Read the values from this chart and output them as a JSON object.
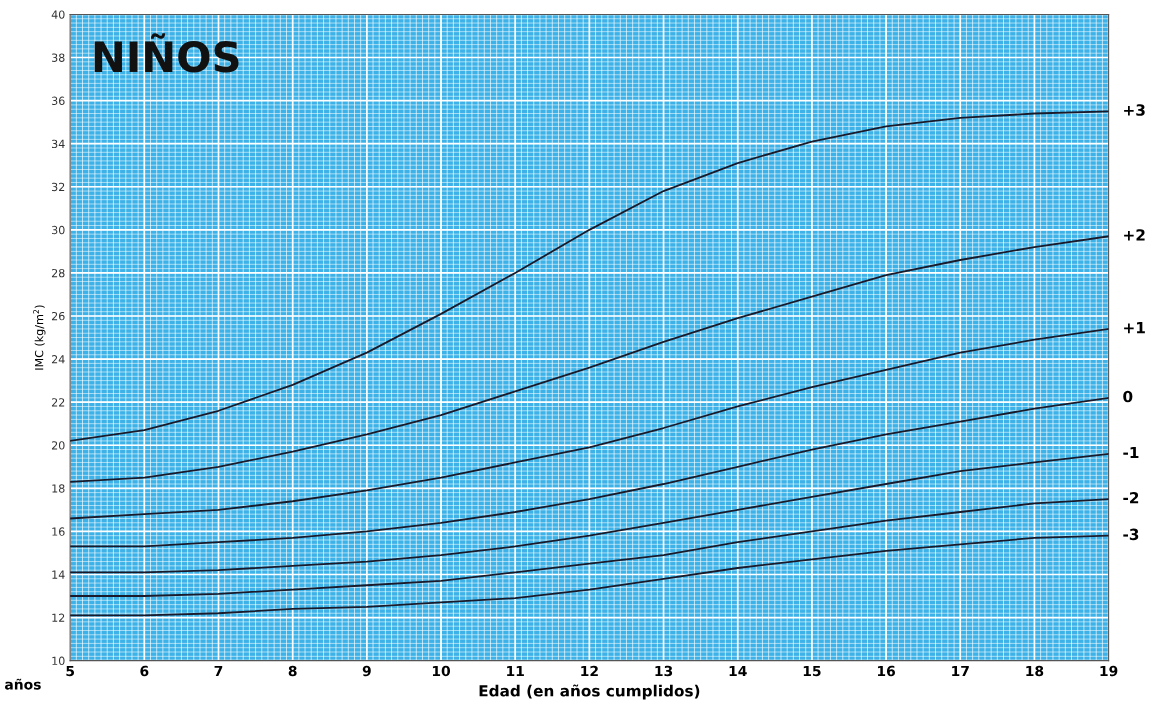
{
  "chart_data": {
    "type": "line",
    "title": "NIÑOS",
    "xlabel": "Edad (en años cumplidos)",
    "ylabel": "IMC (kg/m$^{2}$)",
    "annotations": [
      "años"
    ],
    "x": [
      5,
      6,
      7,
      8,
      9,
      10,
      11,
      12,
      13,
      14,
      15,
      16,
      17,
      18,
      19
    ],
    "series": [
      {
        "name": "+3",
        "color": "#1a1a2a",
        "values": [
          20.2,
          20.7,
          21.6,
          22.8,
          24.3,
          26.1,
          28.0,
          30.0,
          31.8,
          33.1,
          34.1,
          34.8,
          35.2,
          35.4,
          35.5
        ]
      },
      {
        "name": "+2",
        "color": "#1a1a2a",
        "values": [
          18.3,
          18.5,
          19.0,
          19.7,
          20.5,
          21.4,
          22.5,
          23.6,
          24.8,
          25.9,
          26.9,
          27.9,
          28.6,
          29.2,
          29.7
        ]
      },
      {
        "name": "+1",
        "color": "#1a1a2a",
        "values": [
          16.6,
          16.8,
          17.0,
          17.4,
          17.9,
          18.5,
          19.2,
          19.9,
          20.8,
          21.8,
          22.7,
          23.5,
          24.3,
          24.9,
          25.4
        ]
      },
      {
        "name": "0",
        "color": "#1a1a2a",
        "values": [
          15.3,
          15.3,
          15.5,
          15.7,
          16.0,
          16.4,
          16.9,
          17.5,
          18.2,
          19.0,
          19.8,
          20.5,
          21.1,
          21.7,
          22.2
        ]
      },
      {
        "name": "-1",
        "color": "#1a1a2a",
        "values": [
          14.1,
          14.1,
          14.2,
          14.4,
          14.6,
          14.9,
          15.3,
          15.8,
          16.4,
          17.0,
          17.6,
          18.2,
          18.8,
          19.2,
          19.6
        ]
      },
      {
        "name": "-2",
        "color": "#1a1a2a",
        "values": [
          13.0,
          13.0,
          13.1,
          13.3,
          13.5,
          13.7,
          14.1,
          14.5,
          14.9,
          15.5,
          16.0,
          16.5,
          16.9,
          17.3,
          17.5
        ]
      },
      {
        "name": "-3",
        "color": "#1a1a2a",
        "values": [
          12.1,
          12.1,
          12.2,
          12.4,
          12.5,
          12.7,
          12.9,
          13.3,
          13.8,
          14.3,
          14.7,
          15.1,
          15.4,
          15.7,
          15.8
        ]
      }
    ],
    "xlim": [
      5,
      19
    ],
    "xticks": [
      5,
      6,
      7,
      8,
      9,
      10,
      11,
      12,
      13,
      14,
      15,
      16,
      17,
      18,
      19
    ],
    "ylim": [
      10,
      40
    ],
    "yticks": [
      10,
      12,
      14,
      16,
      18,
      20,
      22,
      24,
      26,
      28,
      30,
      32,
      34,
      36,
      38,
      40
    ],
    "grid": true,
    "legend": false,
    "marker": "none",
    "line_style": "solid"
  }
}
